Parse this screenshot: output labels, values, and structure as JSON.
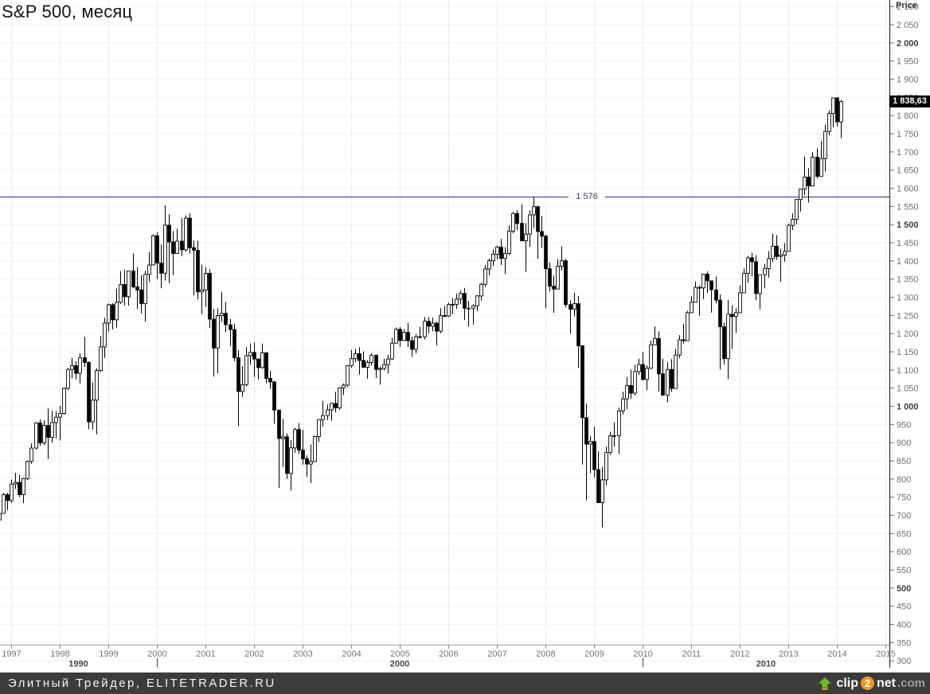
{
  "title": "S&P 500, месяц",
  "footer": {
    "site_label": "Элитный Трейдер, ELITETRADER.RU",
    "bg_color": "#3c3c3c",
    "watermark": {
      "icon": "upload-arrow-icon",
      "arrow_color": "#76b82a",
      "part_clip": "clip",
      "part_two": "2",
      "part_net": "net",
      "part_com": ".com",
      "circle_color": "#f7941e"
    }
  },
  "colors": {
    "up_candle": "#ffffff",
    "down_candle": "#000000",
    "candle_outline": "#000000",
    "grid_vertical": "#ebebeb",
    "grid_horizontal": "#f2f2f2",
    "x_axis_line": "#a0a0a0",
    "y_axis_line": "#2e2e2e",
    "tick": "#6a6a6a",
    "level_line": "#3c3ca0",
    "last_price_bg": "#000000",
    "last_price_fg": "#ffffff"
  },
  "chart_data": {
    "type": "candlestick",
    "title": "S&P 500, месяц",
    "timeframe": "monthly",
    "y_axis_title": "Price",
    "x_start": "1996-10",
    "x_end": "2014-02",
    "ylim": [
      283,
      2118
    ],
    "grid": true,
    "x_tick_labels": [
      "1997",
      "1998",
      "1999",
      "2000",
      "2001",
      "2002",
      "2003",
      "2004",
      "2005",
      "2006",
      "2007",
      "2008",
      "2009",
      "2010",
      "2011",
      "2012",
      "2013",
      "2014",
      "2015"
    ],
    "x_decade_labels": [
      "1990",
      "2000",
      "2010"
    ],
    "y_ticks": {
      "min": 300,
      "max": 2100,
      "step": 50,
      "bold_multiple": 500
    },
    "y_tick_labels": [
      "2 100",
      "2 050",
      "2 000",
      "1 950",
      "1 900",
      "1 850",
      "1 800",
      "1 750",
      "1 700",
      "1 650",
      "1 600",
      "1 550",
      "1 500",
      "1 450",
      "1 400",
      "1 350",
      "1 300",
      "1 250",
      "1 200",
      "1 150",
      "1 100",
      "1 050",
      "1 000",
      "950",
      "900",
      "850",
      "800",
      "750",
      "700",
      "650",
      "600",
      "550",
      "500",
      "450",
      "400",
      "350",
      "300"
    ],
    "level_line": {
      "value": 1576,
      "label": "1 576",
      "color": "#3c3ca0"
    },
    "last_price": {
      "value": 1838.63,
      "label": "1 838,63"
    },
    "first_open": 687.3,
    "ohlc_format": "each candle = [high, low, close]; open = previous close (first_open for the first candle)",
    "candles": [
      [
        710,
        687,
        705.3
      ],
      [
        762,
        705,
        757.0
      ],
      [
        762,
        714,
        740.7
      ],
      [
        798,
        735,
        786.2
      ],
      [
        817,
        773,
        790.8
      ],
      [
        812,
        750,
        757.1
      ],
      [
        804,
        733,
        801.3
      ],
      [
        851,
        797,
        848.3
      ],
      [
        898,
        842,
        885.1
      ],
      [
        957,
        882,
        954.3
      ],
      [
        964,
        891,
        899.5
      ],
      [
        961,
        893,
        947.3
      ],
      [
        994,
        855,
        914.6
      ],
      [
        988,
        900,
        955.4
      ],
      [
        987,
        912,
        970.4
      ],
      [
        1002,
        906,
        980.3
      ],
      [
        1052,
        977,
        1049.3
      ],
      [
        1106,
        1044,
        1101.8
      ],
      [
        1133,
        1077,
        1111.8
      ],
      [
        1124,
        1074,
        1090.8
      ],
      [
        1146,
        1063,
        1133.8
      ],
      [
        1191,
        1108,
        1120.7
      ],
      [
        1124,
        937,
        957.3
      ],
      [
        1066,
        936,
        1017.0
      ],
      [
        1105,
        923,
        1098.7
      ],
      [
        1193,
        1095,
        1163.6
      ],
      [
        1244,
        1133,
        1229.2
      ],
      [
        1283,
        1206,
        1279.6
      ],
      [
        1284,
        1212,
        1238.3
      ],
      [
        1324,
        1217,
        1286.4
      ],
      [
        1372,
        1282,
        1335.2
      ],
      [
        1376,
        1278,
        1301.8
      ],
      [
        1373,
        1277,
        1372.7
      ],
      [
        1421,
        1325,
        1328.7
      ],
      [
        1383,
        1268,
        1320.4
      ],
      [
        1361,
        1256,
        1282.7
      ],
      [
        1373,
        1233,
        1362.9
      ],
      [
        1425,
        1342,
        1388.9
      ],
      [
        1473,
        1388,
        1469.3
      ],
      [
        1479,
        1350,
        1394.5
      ],
      [
        1445,
        1325,
        1366.4
      ],
      [
        1553,
        1346,
        1498.6
      ],
      [
        1528,
        1339,
        1452.4
      ],
      [
        1482,
        1361,
        1420.6
      ],
      [
        1489,
        1421,
        1454.6
      ],
      [
        1518,
        1413,
        1430.8
      ],
      [
        1525,
        1425,
        1517.7
      ],
      [
        1531,
        1420,
        1436.5
      ],
      [
        1456,
        1305,
        1429.4
      ],
      [
        1456,
        1294,
        1315.0
      ],
      [
        1390,
        1254,
        1320.3
      ],
      [
        1383,
        1274,
        1366.0
      ],
      [
        1377,
        1216,
        1239.9
      ],
      [
        1268,
        1082,
        1160.3
      ],
      [
        1270,
        1091,
        1249.5
      ],
      [
        1315,
        1232,
        1255.8
      ],
      [
        1287,
        1204,
        1224.4
      ],
      [
        1240,
        1166,
        1211.2
      ],
      [
        1227,
        1124,
        1133.6
      ],
      [
        1155,
        944.8,
        1040.9
      ],
      [
        1110,
        1026,
        1059.8
      ],
      [
        1163,
        1054,
        1139.5
      ],
      [
        1173,
        1114,
        1148.1
      ],
      [
        1176,
        1081,
        1130.2
      ],
      [
        1131,
        1074,
        1106.7
      ],
      [
        1173,
        1103,
        1147.4
      ],
      [
        1148,
        1063,
        1076.9
      ],
      [
        1098,
        1048,
        1067.1
      ],
      [
        1070,
        952,
        989.8
      ],
      [
        990,
        775.7,
        911.6
      ],
      [
        965,
        833,
        916.1
      ],
      [
        925,
        800,
        815.3
      ],
      [
        907,
        768.6,
        885.8
      ],
      [
        941,
        872,
        936.3
      ],
      [
        954,
        869,
        879.8
      ],
      [
        935,
        840,
        855.7
      ],
      [
        865,
        806,
        841.2
      ],
      [
        895,
        788.9,
        848.2
      ],
      [
        919,
        847,
        916.9
      ],
      [
        965,
        902,
        963.6
      ],
      [
        1015,
        944,
        974.5
      ],
      [
        1005,
        962,
        990.3
      ],
      [
        1011,
        960,
        1008.0
      ],
      [
        1040,
        983,
        996.0
      ],
      [
        1053,
        990,
        1050.7
      ],
      [
        1063,
        1031,
        1058.2
      ],
      [
        1112,
        1053,
        1111.9
      ],
      [
        1155,
        1106,
        1131.1
      ],
      [
        1158,
        1122,
        1144.9
      ],
      [
        1163,
        1087,
        1126.2
      ],
      [
        1151,
        1107,
        1107.3
      ],
      [
        1127,
        1076,
        1120.7
      ],
      [
        1146,
        1113,
        1140.8
      ],
      [
        1141,
        1078,
        1101.7
      ],
      [
        1109,
        1060,
        1104.2
      ],
      [
        1131,
        1099,
        1114.6
      ],
      [
        1142,
        1090,
        1130.2
      ],
      [
        1189,
        1128,
        1173.8
      ],
      [
        1217,
        1173,
        1211.9
      ],
      [
        1218,
        1164,
        1181.3
      ],
      [
        1213,
        1180,
        1203.6
      ],
      [
        1230,
        1163,
        1180.6
      ],
      [
        1192,
        1136,
        1156.9
      ],
      [
        1199,
        1146,
        1191.5
      ],
      [
        1219,
        1188,
        1191.3
      ],
      [
        1246,
        1184,
        1234.2
      ],
      [
        1246,
        1201,
        1220.3
      ],
      [
        1244,
        1206,
        1228.8
      ],
      [
        1233,
        1168,
        1207.0
      ],
      [
        1270,
        1201,
        1249.5
      ],
      [
        1276,
        1246,
        1248.3
      ],
      [
        1285,
        1246,
        1280.1
      ],
      [
        1298,
        1254,
        1280.7
      ],
      [
        1310,
        1268,
        1294.9
      ],
      [
        1318,
        1281,
        1310.6
      ],
      [
        1326,
        1238,
        1270.1
      ],
      [
        1290,
        1219,
        1270.2
      ],
      [
        1281,
        1225,
        1276.7
      ],
      [
        1306,
        1262,
        1303.8
      ],
      [
        1340,
        1291,
        1335.9
      ],
      [
        1389,
        1328,
        1377.9
      ],
      [
        1407,
        1361,
        1400.6
      ],
      [
        1432,
        1386,
        1418.3
      ],
      [
        1442,
        1404,
        1438.2
      ],
      [
        1461,
        1389,
        1406.8
      ],
      [
        1438,
        1364,
        1420.9
      ],
      [
        1498,
        1416,
        1482.4
      ],
      [
        1535,
        1476,
        1530.6
      ],
      [
        1540,
        1485,
        1503.3
      ],
      [
        1556,
        1455,
        1455.3
      ],
      [
        1504,
        1370,
        1474.0
      ],
      [
        1539,
        1439,
        1526.8
      ],
      [
        1576.1,
        1490,
        1549.4
      ],
      [
        1552,
        1406,
        1481.1
      ],
      [
        1524,
        1436,
        1468.4
      ],
      [
        1472,
        1270,
        1378.6
      ],
      [
        1396,
        1316,
        1330.6
      ],
      [
        1360,
        1257,
        1322.7
      ],
      [
        1405,
        1324,
        1385.6
      ],
      [
        1440,
        1374,
        1400.4
      ],
      [
        1406,
        1272,
        1280.0
      ],
      [
        1292,
        1200,
        1267.4
      ],
      [
        1313,
        1247,
        1282.8
      ],
      [
        1304,
        1106,
        1166.4
      ],
      [
        1168,
        839.8,
        968.8
      ],
      [
        1008,
        741,
        896.2
      ],
      [
        919,
        816,
        903.3
      ],
      [
        944,
        804,
        825.9
      ],
      [
        876,
        735,
        735.1
      ],
      [
        833,
        666.8,
        797.9
      ],
      [
        889,
        783,
        872.8
      ],
      [
        930,
        866,
        919.1
      ],
      [
        956,
        889,
        919.3
      ],
      [
        997,
        869,
        987.5
      ],
      [
        1040,
        978,
        1020.6
      ],
      [
        1081,
        992,
        1057.1
      ],
      [
        1101,
        1020,
        1036.2
      ],
      [
        1114,
        1029,
        1095.6
      ],
      [
        1131,
        1086,
        1115.1
      ],
      [
        1150,
        1071,
        1073.9
      ],
      [
        1113,
        1045,
        1104.5
      ],
      [
        1181,
        1106,
        1169.4
      ],
      [
        1220,
        1171,
        1186.7
      ],
      [
        1206,
        1040.8,
        1089.4
      ],
      [
        1131,
        1029,
        1030.7
      ],
      [
        1121,
        1011,
        1101.6
      ],
      [
        1130,
        1040,
        1049.3
      ],
      [
        1158,
        1049,
        1141.2
      ],
      [
        1196,
        1132,
        1183.3
      ],
      [
        1227,
        1173,
        1180.6
      ],
      [
        1263,
        1187,
        1257.6
      ],
      [
        1303,
        1258,
        1286.1
      ],
      [
        1344,
        1290,
        1327.2
      ],
      [
        1333,
        1249,
        1325.8
      ],
      [
        1365,
        1295,
        1363.6
      ],
      [
        1371,
        1312,
        1345.2
      ],
      [
        1346,
        1258,
        1320.6
      ],
      [
        1357,
        1283,
        1292.3
      ],
      [
        1308,
        1101.5,
        1218.9
      ],
      [
        1230,
        1115,
        1131.4
      ],
      [
        1293,
        1074.8,
        1253.3
      ],
      [
        1278,
        1158,
        1247.0
      ],
      [
        1270,
        1202,
        1257.6
      ],
      [
        1333,
        1258,
        1312.4
      ],
      [
        1379,
        1313,
        1365.7
      ],
      [
        1414,
        1340,
        1408.5
      ],
      [
        1422,
        1358,
        1397.9
      ],
      [
        1416,
        1292,
        1310.3
      ],
      [
        1363,
        1267,
        1362.2
      ],
      [
        1392,
        1325,
        1379.3
      ],
      [
        1427,
        1354,
        1406.6
      ],
      [
        1475,
        1397,
        1440.7
      ],
      [
        1471,
        1403,
        1412.2
      ],
      [
        1434,
        1343,
        1416.2
      ],
      [
        1449,
        1398,
        1426.2
      ],
      [
        1503,
        1426,
        1498.1
      ],
      [
        1531,
        1485,
        1514.7
      ],
      [
        1570,
        1501,
        1569.2
      ],
      [
        1598,
        1536,
        1597.6
      ],
      [
        1687,
        1581,
        1630.7
      ],
      [
        1655,
        1560,
        1606.3
      ],
      [
        1699,
        1605,
        1685.7
      ],
      [
        1710,
        1627,
        1633.0
      ],
      [
        1730,
        1633,
        1681.6
      ],
      [
        1775,
        1646,
        1756.5
      ],
      [
        1814,
        1746,
        1805.8
      ],
      [
        1849,
        1768,
        1848.4
      ],
      [
        1850.8,
        1770,
        1782.6
      ],
      [
        1842,
        1737.9,
        1838.63
      ]
    ]
  }
}
